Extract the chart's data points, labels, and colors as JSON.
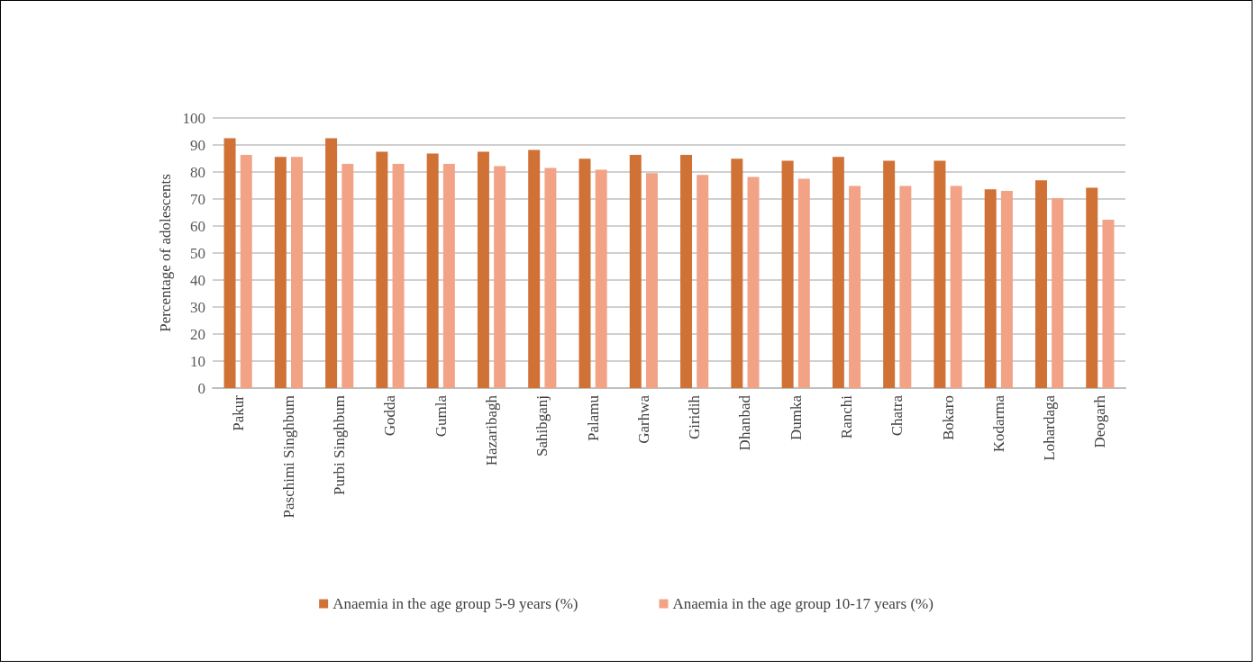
{
  "chart_data": {
    "type": "bar",
    "ylabel": "Percentage of adolescents",
    "categories": [
      "Pakur",
      "Paschimi Singhbum",
      "Purbi Singhbum",
      "Godda",
      "Gumla",
      "Hazaribagh",
      "Sahibganj",
      "Palamu",
      "Garhwa",
      "Giridih",
      "Dhanbad",
      "Dumka",
      "Ranchi",
      "Chatra",
      "Bokaro",
      "Kodarma",
      "Lohardaga",
      "Deogarh"
    ],
    "series": [
      {
        "name": "Anaemia in the age group 5-9 years (%)",
        "color": "#d07236",
        "values": [
          92.5,
          85.6,
          92.5,
          87.5,
          86.8,
          87.5,
          88.2,
          84.9,
          86.3,
          86.3,
          84.9,
          84.2,
          85.6,
          84.2,
          84.2,
          73.6,
          76.9,
          74.2
        ]
      },
      {
        "name": "Anaemia in the age group 10-17 years (%)",
        "color": "#f2a386",
        "values": [
          86.3,
          85.6,
          83,
          83,
          83,
          82.2,
          81.5,
          80.8,
          79.6,
          78.9,
          78.2,
          77.5,
          74.8,
          74.8,
          74.8,
          73,
          70.3,
          62.3
        ]
      }
    ],
    "ylim": [
      0,
      100
    ],
    "yticks": [
      0,
      10,
      20,
      30,
      40,
      50,
      60,
      70,
      80,
      90,
      100
    ],
    "grid": "y",
    "legend": "bottom"
  }
}
